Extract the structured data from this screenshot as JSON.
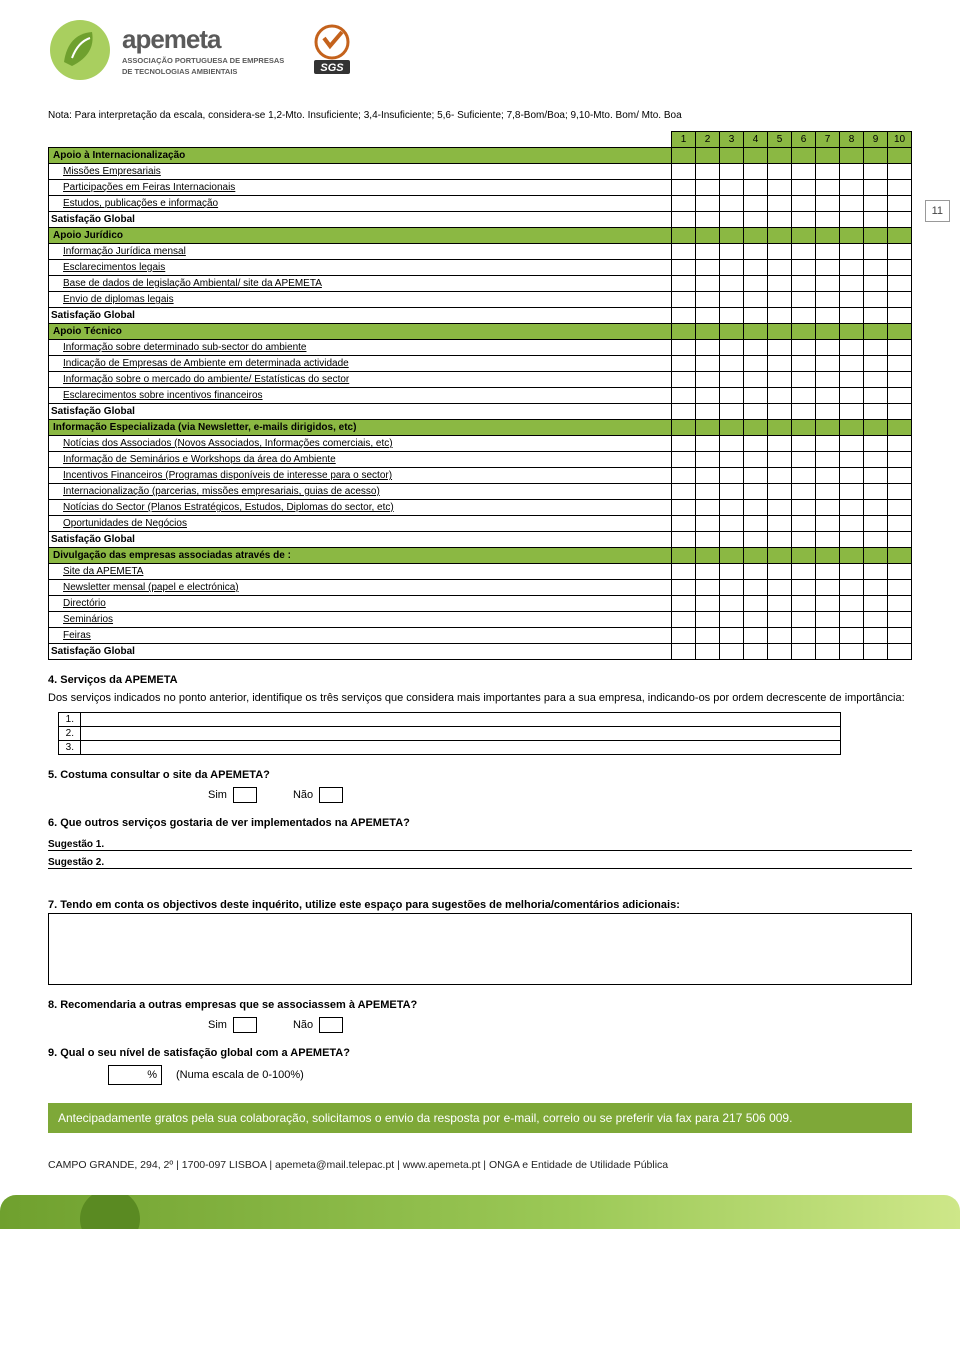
{
  "logo": {
    "brand": "apemeta",
    "sub1": "ASSOCIAÇÃO PORTUGUESA DE EMPRESAS",
    "sub2": "DE TECNOLOGIAS AMBIENTAIS",
    "sgs": "SGS"
  },
  "note": "Nota: Para interpretação da escala, considera-se 1,2-Mto. Insuficiente; 3,4-Insuficiente; 5,6- Suficiente; 7,8-Bom/Boa; 9,10-Mto. Bom/ Mto. Boa",
  "scale": [
    "1",
    "2",
    "3",
    "4",
    "5",
    "6",
    "7",
    "8",
    "9",
    "10"
  ],
  "page_num": "11",
  "sections": [
    {
      "title": "Apoio à Internacionalização",
      "rows": [
        "Missões Empresariais",
        "Participações em Feiras Internacionais",
        "Estudos, publicações e informação"
      ]
    },
    {
      "title": "Apoio Jurídico",
      "rows": [
        "Informação Jurídica mensal",
        "Esclarecimentos legais",
        "Base de dados de legislação Ambiental/ site da APEMETA",
        "Envio de diplomas legais"
      ]
    },
    {
      "title": "Apoio Técnico",
      "rows": [
        "Informação sobre determinado sub-sector do ambiente",
        "Indicação de Empresas de Ambiente em determinada actividade",
        "Informação sobre o mercado do ambiente/ Estatísticas do sector",
        "Esclarecimentos sobre incentivos financeiros"
      ]
    },
    {
      "title": "Informação Especializada (via Newsletter, e-mails dirigidos, etc)",
      "rows": [
        "Notícias dos Associados (Novos Associados, Informações comerciais, etc)",
        "Informação de Seminários e Workshops da área do Ambiente",
        "Incentivos Financeiros (Programas disponíveis de interesse para o sector)",
        "Internacionalização (parcerias, missões empresariais, guias de acesso)",
        "Notícias do Sector (Planos Estratégicos, Estudos, Diplomas do sector, etc)",
        "Oportunidades de Negócios"
      ]
    },
    {
      "title": "Divulgação das empresas associadas através de :",
      "rows": [
        "Site da APEMETA",
        "Newsletter mensal (papel e electrónica)",
        "Directório",
        "Seminários",
        "Feiras"
      ]
    }
  ],
  "sg_label": "Satisfação Global",
  "q4": {
    "head": "4. Serviços da APEMETA",
    "body": "Dos serviços indicados no ponto anterior, identifique os três serviços que considera mais importantes para a sua empresa, indicando-os por ordem decrescente de importância:",
    "ranks": [
      "1.",
      "2.",
      "3."
    ]
  },
  "q5": {
    "head": "5. Costuma consultar o site da APEMETA?",
    "yes": "Sim",
    "no": "Não"
  },
  "q6": {
    "head": "6. Que outros serviços gostaria de ver implementados na APEMETA?",
    "s1": "Sugestão 1.",
    "s2": "Sugestão 2."
  },
  "q7": {
    "head": "7. Tendo em conta os objectivos deste inquérito, utilize este espaço para sugestões de melhoria/comentários adicionais:"
  },
  "q8": {
    "head": "8. Recomendaria a outras empresas que se associassem à APEMETA?",
    "yes": "Sim",
    "no": "Não"
  },
  "q9": {
    "head": "9. Qual o seu nível de satisfação global com a APEMETA?",
    "pct": "%",
    "hint": "(Numa escala de 0-100%)"
  },
  "thanks": "Antecipadamente gratos pela sua colaboração, solicitamos o envio da resposta por e-mail, correio ou se preferir via fax para 217 506 009.",
  "footer": "CAMPO GRANDE, 294, 2º | 1700-097 LISBOA | apemeta@mail.telepac.pt | www.apemeta.pt | ONGA e Entidade de Utilidade Pública",
  "colors": {
    "green": "#8bb843",
    "green2": "#7ea838"
  }
}
